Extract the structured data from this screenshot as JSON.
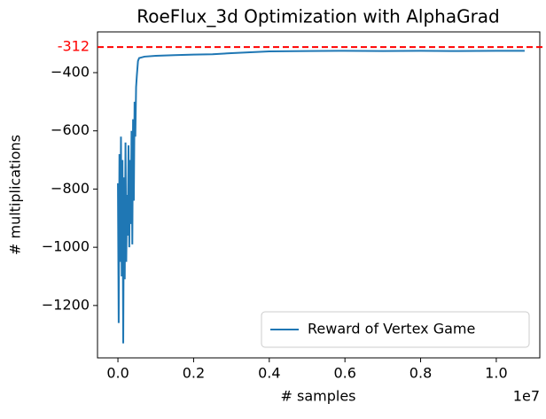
{
  "chart_data": {
    "type": "line",
    "title": "RoeFlux_3d Optimization with AlphaGrad",
    "xlabel": "# samples",
    "ylabel": "# multiplications",
    "x_offset_label": "1e7",
    "x": [
      0.0,
      0.002,
      0.004,
      0.006,
      0.008,
      0.01,
      0.012,
      0.014,
      0.016,
      0.018,
      0.02,
      0.022,
      0.024,
      0.026,
      0.028,
      0.03,
      0.032,
      0.034,
      0.036,
      0.038,
      0.04,
      0.042,
      0.044,
      0.046,
      0.048,
      0.05,
      0.053,
      0.056,
      0.07,
      0.1,
      0.15,
      0.2,
      0.25,
      0.3,
      0.35,
      0.4,
      0.5,
      0.6,
      0.7,
      0.8,
      0.9,
      1.0,
      1.075
    ],
    "series": [
      {
        "name": "Reward of Vertex Game",
        "color": "#1f77b4",
        "values": [
          -780,
          -1260,
          -680,
          -1050,
          -620,
          -1100,
          -700,
          -1330,
          -760,
          -1110,
          -640,
          -1050,
          -820,
          -960,
          -650,
          -1000,
          -700,
          -920,
          -600,
          -990,
          -560,
          -840,
          -500,
          -620,
          -450,
          -410,
          -360,
          -350,
          -345,
          -342,
          -340,
          -338,
          -337,
          -333,
          -330,
          -327,
          -326,
          -325,
          -326,
          -325,
          -326,
          -325,
          -325
        ]
      }
    ],
    "hline": {
      "value": -312,
      "label": "-312",
      "color": "#ff0000"
    },
    "xlim": [
      -0.054,
      1.115
    ],
    "ylim": [
      -1380,
      -260
    ],
    "xticks": [
      {
        "value": 0,
        "label": "0.0"
      },
      {
        "value": 0.2,
        "label": "0.2"
      },
      {
        "value": 0.4,
        "label": "0.4"
      },
      {
        "value": 0.6,
        "label": "0.6"
      },
      {
        "value": 0.8,
        "label": "0.8"
      },
      {
        "value": 1,
        "label": "1.0"
      }
    ],
    "yticks": [
      {
        "value": -1200,
        "label": "−1200"
      },
      {
        "value": -1000,
        "label": "−1000"
      },
      {
        "value": -800,
        "label": "−800"
      },
      {
        "value": -600,
        "label": "−600"
      },
      {
        "value": -400,
        "label": "−400"
      }
    ],
    "legend": "lower right"
  }
}
